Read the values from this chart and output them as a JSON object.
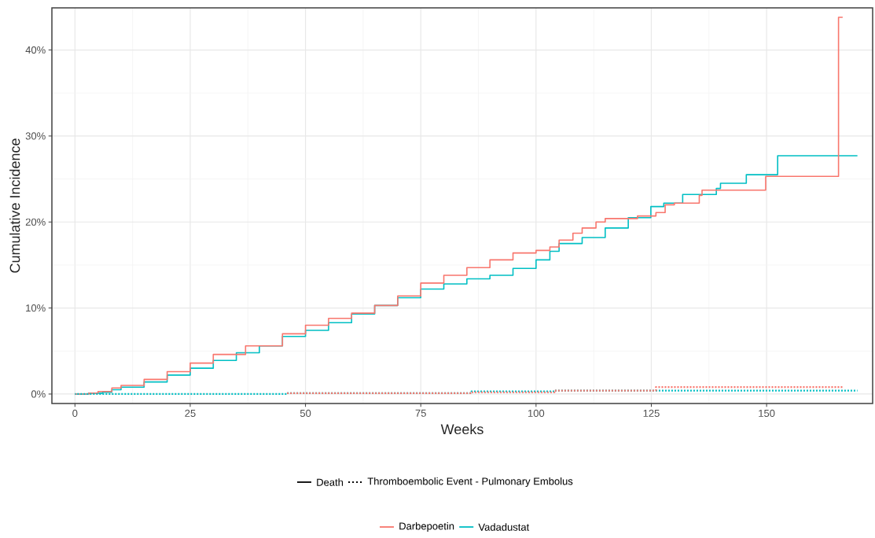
{
  "chart_data": {
    "type": "step",
    "xlabel": "Weeks",
    "ylabel": "Cumulative Incidence",
    "xlim": [
      -5,
      173
    ],
    "ylim": [
      -1.1,
      44.9
    ],
    "xticks": [
      0,
      25,
      50,
      75,
      100,
      125,
      150
    ],
    "yticks": [
      {
        "value": 0,
        "label": "0%"
      },
      {
        "value": 10,
        "label": "10%"
      },
      {
        "value": 20,
        "label": "20%"
      },
      {
        "value": 30,
        "label": "30%"
      },
      {
        "value": 40,
        "label": "40%"
      }
    ],
    "grid": true,
    "legend": "bottom",
    "annotations": [
      "Death",
      "Thromboembolic Event - Pulmonary Embolus"
    ],
    "series": [
      {
        "name": "Darbepoetin",
        "color": "#f8766d",
        "line_style": "solid",
        "x": [
          0,
          3,
          5,
          8,
          10,
          15,
          20,
          25,
          30,
          37,
          45,
          50,
          55,
          60,
          65,
          70,
          75,
          80,
          85,
          90,
          95,
          100,
          103,
          105,
          108,
          110,
          113,
          115,
          122,
          126,
          128,
          130,
          135.4,
          136,
          149.8,
          165.6,
          166.5
        ],
        "values": [
          0,
          0.1,
          0.3,
          0.7,
          1.0,
          1.7,
          2.6,
          3.6,
          4.6,
          5.6,
          7.0,
          8.0,
          8.8,
          9.4,
          10.3,
          11.4,
          12.9,
          13.8,
          14.7,
          15.6,
          16.4,
          16.7,
          17.1,
          17.9,
          18.7,
          19.3,
          20.0,
          20.4,
          20.7,
          21.1,
          22.0,
          22.2,
          23.1,
          23.7,
          25.3,
          43.8,
          43.8
        ]
      },
      {
        "name": "Vadadustat",
        "color": "#00bfc4",
        "line_style": "solid",
        "x": [
          0,
          3,
          6,
          8,
          10,
          15,
          20,
          25,
          30,
          35,
          40,
          45,
          50,
          55,
          60,
          65,
          70,
          75,
          80,
          85,
          90,
          95,
          100,
          103,
          105,
          110,
          115,
          120,
          124.9,
          127.7,
          131.8,
          139.1,
          140,
          145.6,
          152.4,
          169.7
        ],
        "values": [
          0,
          0.1,
          0.2,
          0.5,
          0.8,
          1.4,
          2.2,
          3.0,
          3.9,
          4.8,
          5.6,
          6.7,
          7.4,
          8.3,
          9.3,
          10.3,
          11.2,
          12.2,
          12.8,
          13.4,
          13.8,
          14.6,
          15.6,
          16.6,
          17.5,
          18.2,
          19.3,
          20.5,
          21.8,
          22.2,
          23.2,
          23.9,
          24.5,
          25.5,
          27.7,
          27.7
        ]
      },
      {
        "color": "#f8766d",
        "line_style": "dotted",
        "x": [
          46,
          86,
          104,
          126,
          166.5
        ],
        "values": [
          0.1,
          0.2,
          0.4,
          0.8,
          0.8
        ]
      },
      {
        "color": "#00bfc4",
        "line_style": "dotted",
        "x": [
          0,
          46,
          86,
          104,
          169.7
        ],
        "values": [
          0,
          0.1,
          0.3,
          0.4,
          0.4
        ]
      }
    ]
  }
}
